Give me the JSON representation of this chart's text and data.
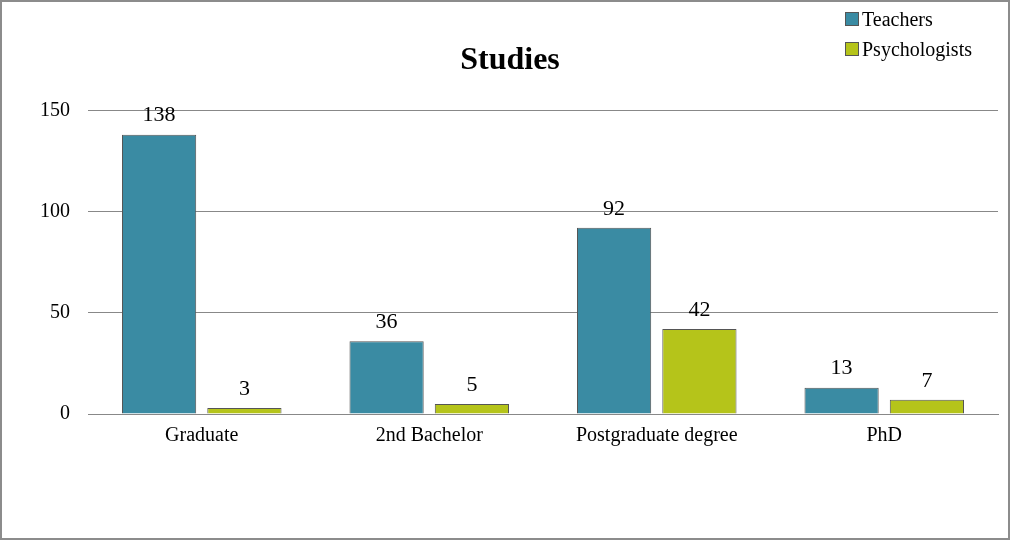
{
  "chart_data": {
    "type": "bar",
    "title": "Studies",
    "categories": [
      "Graduate",
      "2nd Bachelor",
      "Postgraduate degree",
      "PhD"
    ],
    "series": [
      {
        "name": "Teachers",
        "color": "#3a8ba3",
        "values": [
          138,
          36,
          92,
          13
        ]
      },
      {
        "name": "Psychologists",
        "color": "#b5c41a",
        "values": [
          3,
          5,
          42,
          7
        ]
      }
    ],
    "ylim": [
      0,
      150
    ],
    "yticks": [
      0,
      50,
      100,
      150
    ],
    "grid": "y",
    "legend": "top right",
    "data_labels": true
  }
}
